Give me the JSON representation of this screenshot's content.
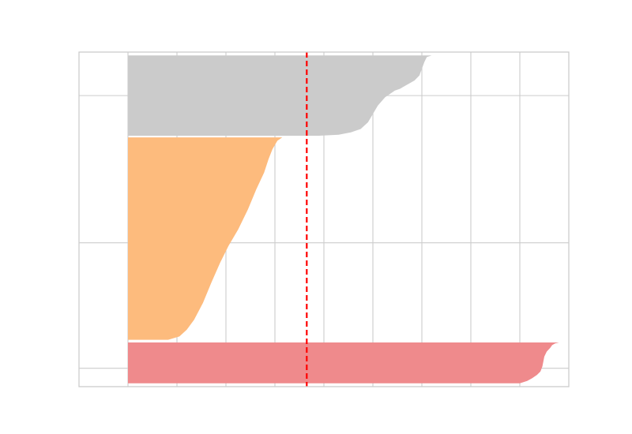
{
  "chart_data": {
    "type": "silhouette",
    "title": "",
    "xlabel": "",
    "ylabel": "",
    "xlim": [
      -0.1,
      0.9
    ],
    "ylim": [
      0,
      100
    ],
    "x_gridlines": [
      0.0,
      0.1,
      0.2,
      0.3,
      0.4,
      0.5,
      0.6,
      0.7,
      0.8
    ],
    "y_gridlines": [
      5.5,
      43,
      87
    ],
    "grid": true,
    "legend": "none",
    "reference_line": {
      "x": 0.365,
      "color": "#ff0000",
      "style": "dashed"
    },
    "clusters": [
      {
        "color": "#ef8a8c",
        "y_range": [
          1,
          13.2
        ],
        "profile": [
          [
            13.2,
            0.88
          ],
          [
            12.9,
            0.872
          ],
          [
            12.4,
            0.866
          ],
          [
            11.6,
            0.862
          ],
          [
            10.5,
            0.855
          ],
          [
            9.0,
            0.85
          ],
          [
            7.5,
            0.848
          ],
          [
            6.0,
            0.846
          ],
          [
            4.5,
            0.842
          ],
          [
            3.5,
            0.835
          ],
          [
            2.5,
            0.825
          ],
          [
            1.7,
            0.815
          ],
          [
            1.0,
            0.8
          ]
        ]
      },
      {
        "color": "#fdbb7d",
        "y_range": [
          14,
          74.5
        ],
        "profile": [
          [
            74.5,
            0.315
          ],
          [
            73.5,
            0.305
          ],
          [
            71.0,
            0.295
          ],
          [
            68.0,
            0.287
          ],
          [
            64.0,
            0.278
          ],
          [
            59.0,
            0.262
          ],
          [
            53.0,
            0.245
          ],
          [
            47.0,
            0.225
          ],
          [
            42.0,
            0.205
          ],
          [
            37.0,
            0.188
          ],
          [
            31.0,
            0.17
          ],
          [
            25.0,
            0.153
          ],
          [
            20.0,
            0.135
          ],
          [
            17.0,
            0.12
          ],
          [
            15.0,
            0.105
          ],
          [
            14.0,
            0.082
          ]
        ]
      },
      {
        "color": "#cbcbcb",
        "y_range": [
          75,
          99
        ],
        "profile": [
          [
            99.0,
            0.62
          ],
          [
            98.5,
            0.61
          ],
          [
            97.0,
            0.605
          ],
          [
            95.0,
            0.6
          ],
          [
            93.0,
            0.595
          ],
          [
            91.5,
            0.585
          ],
          [
            89.0,
            0.555
          ],
          [
            88.5,
            0.545
          ],
          [
            86.5,
            0.525
          ],
          [
            84.0,
            0.51
          ],
          [
            81.5,
            0.5
          ],
          [
            79.0,
            0.49
          ],
          [
            77.0,
            0.475
          ],
          [
            76.0,
            0.455
          ],
          [
            75.3,
            0.43
          ],
          [
            75.0,
            0.39
          ]
        ]
      }
    ]
  }
}
